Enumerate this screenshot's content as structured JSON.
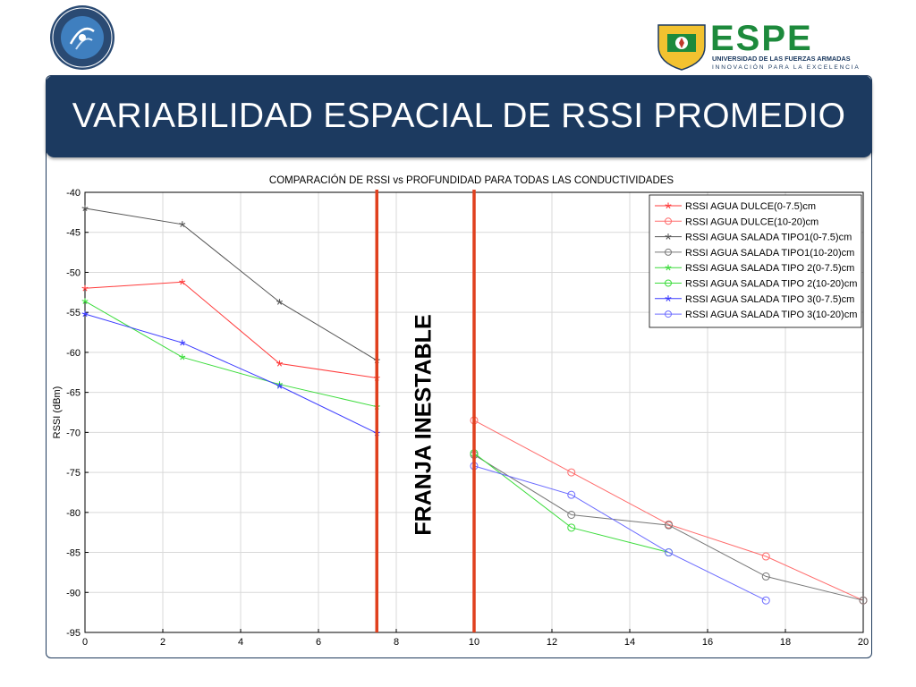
{
  "slide": {
    "title": "VARIABILIDAD ESPACIAL DE RSSI PROMEDIO",
    "logo_text": "ESPE",
    "logo_subtitle_1": "UNIVERSIDAD DE LAS FUERZAS ARMADAS",
    "logo_subtitle_2": "INNOVACIÓN PARA LA EXCELENCIA"
  },
  "annotation": "FRANJA INESTABLE",
  "colors": {
    "title_bar": "#1c3a60",
    "band_lines": "#e0401e",
    "logo_green": "#1d8a3c",
    "logo_navy": "#1c3a60"
  },
  "chart_data": {
    "type": "line",
    "title": "COMPARACIÓN DE RSSI vs PROFUNDIDAD PARA TODAS LAS CONDUCTIVIDADES",
    "xlabel": "",
    "ylabel": "RSSI (dBm)",
    "xlim": [
      0,
      20
    ],
    "ylim": [
      -95,
      -40
    ],
    "xticks": [
      0,
      2,
      4,
      6,
      8,
      10,
      12,
      14,
      16,
      18,
      20
    ],
    "yticks": [
      -40,
      -45,
      -50,
      -55,
      -60,
      -65,
      -70,
      -75,
      -80,
      -85,
      -90,
      -95
    ],
    "grid": true,
    "legend_position": "top-right",
    "unstable_band_x": [
      7.5,
      10
    ],
    "series": [
      {
        "name": "RSSI AGUA DULCE(0-7.5)cm",
        "color": "#ff3b3b",
        "marker": "star",
        "x": [
          0,
          2.5,
          5,
          7.5
        ],
        "y": [
          -52,
          -51.2,
          -61.4,
          -63.2
        ]
      },
      {
        "name": "RSSI AGUA DULCE(10-20)cm",
        "color": "#ff6b6b",
        "marker": "circle",
        "x": [
          10,
          12.5,
          15,
          17.5,
          20
        ],
        "y": [
          -68.5,
          -75,
          -81.5,
          -85.5,
          -91
        ]
      },
      {
        "name": "RSSI AGUA SALADA TIPO1(0-7.5)cm",
        "color": "#555555",
        "marker": "star",
        "x": [
          0,
          2.5,
          5,
          7.5
        ],
        "y": [
          -42,
          -44,
          -53.7,
          -61
        ]
      },
      {
        "name": "RSSI AGUA SALADA TIPO1(10-20)cm",
        "color": "#777777",
        "marker": "circle",
        "x": [
          10,
          12.5,
          15,
          17.5,
          20
        ],
        "y": [
          -72.8,
          -80.3,
          -81.6,
          -88,
          -91
        ]
      },
      {
        "name": "RSSI AGUA SALADA TIPO 2(0-7.5)cm",
        "color": "#3bdc3b",
        "marker": "star",
        "x": [
          0,
          2.5,
          5,
          7.5
        ],
        "y": [
          -53.6,
          -60.6,
          -64,
          -66.8
        ]
      },
      {
        "name": "RSSI AGUA SALADA TIPO 2(10-20)cm",
        "color": "#3bdc3b",
        "marker": "circle",
        "x": [
          10,
          12.5,
          15
        ],
        "y": [
          -72.6,
          -81.9,
          -85
        ]
      },
      {
        "name": "RSSI AGUA SALADA TIPO 3(0-7.5)cm",
        "color": "#3b3bff",
        "marker": "star",
        "x": [
          0,
          2.5,
          5,
          7.5
        ],
        "y": [
          -55.2,
          -58.8,
          -64.2,
          -70.1
        ]
      },
      {
        "name": "RSSI AGUA SALADA TIPO 3(10-20)cm",
        "color": "#6b6bff",
        "marker": "circle",
        "x": [
          10,
          12.5,
          15,
          17.5
        ],
        "y": [
          -74.2,
          -77.8,
          -85,
          -91
        ]
      }
    ]
  }
}
